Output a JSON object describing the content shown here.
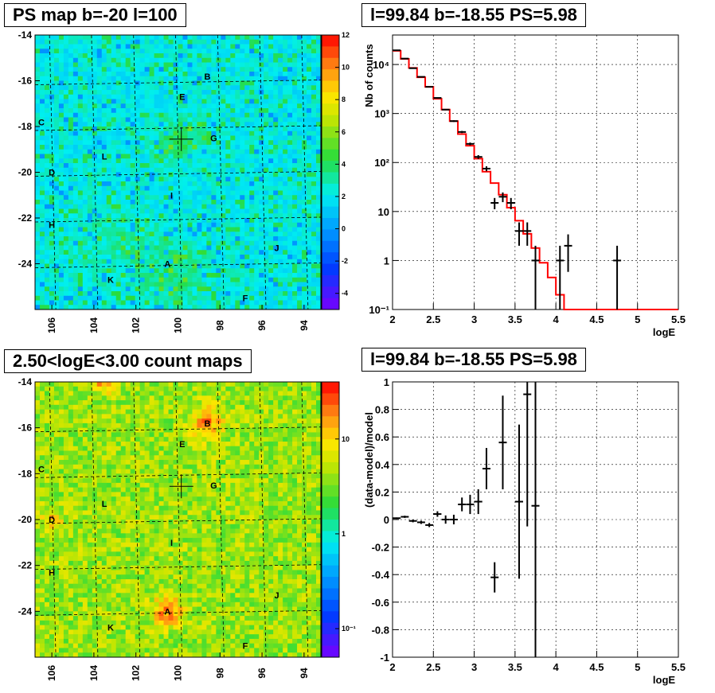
{
  "panels": {
    "ps_map": {
      "title": "PS map b=-20 l=100"
    },
    "spectrum": {
      "title": "l=99.84 b=-18.55 PS=5.98"
    },
    "count_map": {
      "title": "2.50<logE<3.00 count maps"
    },
    "residual": {
      "title": "l=99.84 b=-18.55 PS=5.98"
    }
  },
  "source_labels": [
    {
      "name": "B",
      "l": 98.6,
      "b": -15.8
    },
    {
      "name": "E",
      "l": 99.8,
      "b": -16.7
    },
    {
      "name": "C",
      "l": 106.5,
      "b": -17.8
    },
    {
      "name": "G",
      "l": 98.3,
      "b": -18.5
    },
    {
      "name": "L",
      "l": 103.5,
      "b": -19.3
    },
    {
      "name": "D",
      "l": 106.0,
      "b": -20.0
    },
    {
      "name": "I",
      "l": 100.3,
      "b": -21.0
    },
    {
      "name": "H",
      "l": 106.0,
      "b": -22.3
    },
    {
      "name": "J",
      "l": 95.3,
      "b": -23.3
    },
    {
      "name": "A",
      "l": 100.5,
      "b": -24.0
    },
    {
      "name": "K",
      "l": 103.2,
      "b": -24.7
    },
    {
      "name": "F",
      "l": 96.8,
      "b": -25.5
    }
  ],
  "maps_axes": {
    "x_ticks": [
      "106",
      "104",
      "102",
      "100",
      "98",
      "96",
      "94"
    ],
    "y_ticks": [
      "-14",
      "-16",
      "-18",
      "-20",
      "-22",
      "-24"
    ]
  },
  "chart_data": [
    {
      "type": "heatmap",
      "title": "PS map b=-20 l=100",
      "xlabel": "",
      "ylabel": "",
      "xlim": [
        106.8,
        93.2
      ],
      "ylim": [
        -26.0,
        -14.0
      ],
      "colorbar": {
        "min": -5,
        "max": 12,
        "ticks": [
          "12",
          "10",
          "8",
          "6",
          "4",
          "2",
          "0",
          "-2",
          "-4"
        ]
      },
      "marker": {
        "l": 99.84,
        "b": -18.55
      }
    },
    {
      "type": "line",
      "title": "l=99.84 b=-18.55 PS=5.98",
      "xlabel": "logE",
      "ylabel": "Nb of counts",
      "xlim": [
        2,
        5.5
      ],
      "ylog": true,
      "ylim": [
        0.1,
        40000
      ],
      "x_ticks": [
        "2",
        "2.5",
        "3",
        "3.5",
        "4",
        "4.5",
        "5",
        "5.5"
      ],
      "y_ticks": [
        "10⁴",
        "10³",
        "10²",
        "10",
        "1",
        "10⁻¹"
      ],
      "grid": true,
      "series": [
        {
          "style": "step",
          "bin_edges": [
            2.0,
            2.1,
            2.2,
            2.3,
            2.4,
            2.5,
            2.6,
            2.7,
            2.8,
            2.9,
            3.0,
            3.1,
            3.2,
            3.3,
            3.4,
            3.5,
            3.6,
            3.7,
            3.8,
            3.9,
            4.0,
            4.1,
            5.5
          ],
          "values": [
            19000,
            13000,
            8500,
            5500,
            3500,
            2000,
            1200,
            700,
            380,
            220,
            120,
            65,
            38,
            22,
            12,
            6.5,
            3.5,
            1.8,
            0.9,
            0.45,
            0.2,
            0.1
          ]
        },
        {
          "style": "points",
          "x": [
            2.05,
            2.15,
            2.25,
            2.35,
            2.45,
            2.55,
            2.65,
            2.75,
            2.85,
            2.95,
            3.05,
            3.15,
            3.25,
            3.35,
            3.45,
            3.55,
            3.65,
            3.75,
            4.05,
            4.15,
            4.75
          ],
          "y": [
            19500,
            13200,
            8400,
            5600,
            3500,
            2080,
            1200,
            700,
            420,
            240,
            130,
            75,
            15,
            20,
            15,
            4,
            4,
            1,
            1,
            2,
            1
          ]
        }
      ]
    },
    {
      "type": "heatmap",
      "title": "2.50<logE<3.00 count maps",
      "xlabel": "",
      "ylabel": "",
      "xlim": [
        106.8,
        93.2
      ],
      "ylim": [
        -26.0,
        -14.0
      ],
      "colorbar": {
        "log": true,
        "min": 0.05,
        "max": 40,
        "ticks": [
          "10",
          "1",
          "10⁻¹"
        ]
      },
      "marker": {
        "l": 99.84,
        "b": -18.55
      }
    },
    {
      "type": "scatter",
      "title": "l=99.84 b=-18.55 PS=5.98",
      "xlabel": "logE",
      "ylabel": "(data-model)/model",
      "xlim": [
        2,
        5.5
      ],
      "ylim": [
        -1,
        1
      ],
      "x_ticks": [
        "2",
        "2.5",
        "3",
        "3.5",
        "4",
        "4.5",
        "5",
        "5.5"
      ],
      "y_ticks": [
        "1",
        "0.8",
        "0.6",
        "0.4",
        "0.2",
        "0",
        "-0.2",
        "-0.4",
        "-0.6",
        "-0.8",
        "-1"
      ],
      "grid": true,
      "x": [
        2.05,
        2.15,
        2.25,
        2.35,
        2.45,
        2.55,
        2.65,
        2.75,
        2.85,
        2.95,
        3.05,
        3.15,
        3.25,
        3.35,
        3.55,
        3.65,
        3.75
      ],
      "y": [
        0.01,
        0.02,
        -0.01,
        -0.02,
        -0.04,
        0.04,
        0.0,
        0.0,
        0.11,
        0.11,
        0.13,
        0.37,
        -0.42,
        0.56,
        0.13,
        0.91,
        0.1
      ],
      "err": [
        0.005,
        0.008,
        0.01,
        0.012,
        0.015,
        0.02,
        0.03,
        0.035,
        0.05,
        0.07,
        0.09,
        0.15,
        0.11,
        0.34,
        0.56,
        0.96,
        1.1
      ]
    }
  ]
}
